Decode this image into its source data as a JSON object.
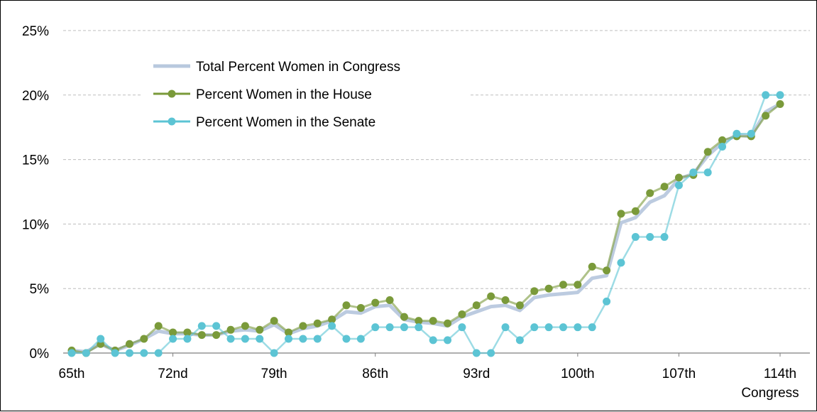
{
  "chart_data": {
    "type": "line",
    "xlabel": "Congress",
    "x": [
      65,
      66,
      67,
      68,
      69,
      70,
      71,
      72,
      73,
      74,
      75,
      76,
      77,
      78,
      79,
      80,
      81,
      82,
      83,
      84,
      85,
      86,
      87,
      88,
      89,
      90,
      91,
      92,
      93,
      94,
      95,
      96,
      97,
      98,
      99,
      100,
      101,
      102,
      103,
      104,
      105,
      106,
      107,
      108,
      109,
      110,
      111,
      112,
      113,
      114
    ],
    "x_tick_values": [
      65,
      72,
      79,
      86,
      93,
      100,
      107,
      114
    ],
    "x_tick_labels": [
      "65th",
      "72nd",
      "79th",
      "86th",
      "93rd",
      "100th",
      "107th",
      "114th"
    ],
    "y_tick_values": [
      0,
      5,
      10,
      15,
      20,
      25
    ],
    "y_tick_labels": [
      "0%",
      "5%",
      "10%",
      "15%",
      "20%",
      "25%"
    ],
    "ylim": [
      0,
      25
    ],
    "grid": "horizontal dashed",
    "legend_position": "top-left",
    "series": [
      {
        "name": "Total Percent Women in Congress",
        "color": "#b8c8de",
        "marker": "none",
        "values": [
          0.2,
          0.1,
          0.7,
          0.2,
          0.6,
          1.1,
          1.7,
          1.5,
          1.5,
          1.4,
          1.4,
          1.7,
          1.8,
          1.7,
          2.2,
          1.5,
          1.9,
          2.1,
          2.5,
          3.2,
          3.1,
          3.6,
          3.7,
          2.6,
          2.4,
          2.3,
          2.1,
          2.8,
          3.2,
          3.6,
          3.7,
          3.3,
          4.3,
          4.5,
          4.6,
          4.7,
          5.8,
          6.0,
          10.1,
          10.5,
          11.7,
          12.2,
          13.5,
          13.9,
          15.3,
          16.3,
          16.9,
          16.8,
          18.7,
          19.3
        ]
      },
      {
        "name": "Percent Women in the House",
        "color": "#7a9a3a",
        "marker": "circle",
        "values": [
          0.2,
          0.0,
          0.7,
          0.2,
          0.7,
          1.1,
          2.1,
          1.6,
          1.6,
          1.4,
          1.4,
          1.8,
          2.1,
          1.8,
          2.5,
          1.6,
          2.1,
          2.3,
          2.6,
          3.7,
          3.5,
          3.9,
          4.1,
          2.8,
          2.5,
          2.5,
          2.3,
          3.0,
          3.7,
          4.4,
          4.1,
          3.7,
          4.8,
          5.0,
          5.3,
          5.3,
          6.7,
          6.4,
          10.8,
          11.0,
          12.4,
          12.9,
          13.6,
          13.8,
          15.6,
          16.5,
          16.8,
          16.8,
          18.4,
          19.3
        ]
      },
      {
        "name": "Percent Women in the Senate",
        "color": "#5cc4d4",
        "marker": "circle",
        "values": [
          0,
          0,
          1.1,
          0,
          0,
          0,
          0,
          1.1,
          1.1,
          2.1,
          2.1,
          1.1,
          1.1,
          1.1,
          0,
          1.1,
          1.1,
          1.1,
          2.1,
          1.1,
          1.1,
          2,
          2,
          2,
          2,
          1,
          1,
          2,
          0,
          0,
          2,
          1,
          2,
          2,
          2,
          2,
          2,
          4,
          7,
          9,
          9,
          9,
          13,
          14,
          14,
          16,
          17,
          17,
          20,
          20
        ]
      }
    ]
  }
}
